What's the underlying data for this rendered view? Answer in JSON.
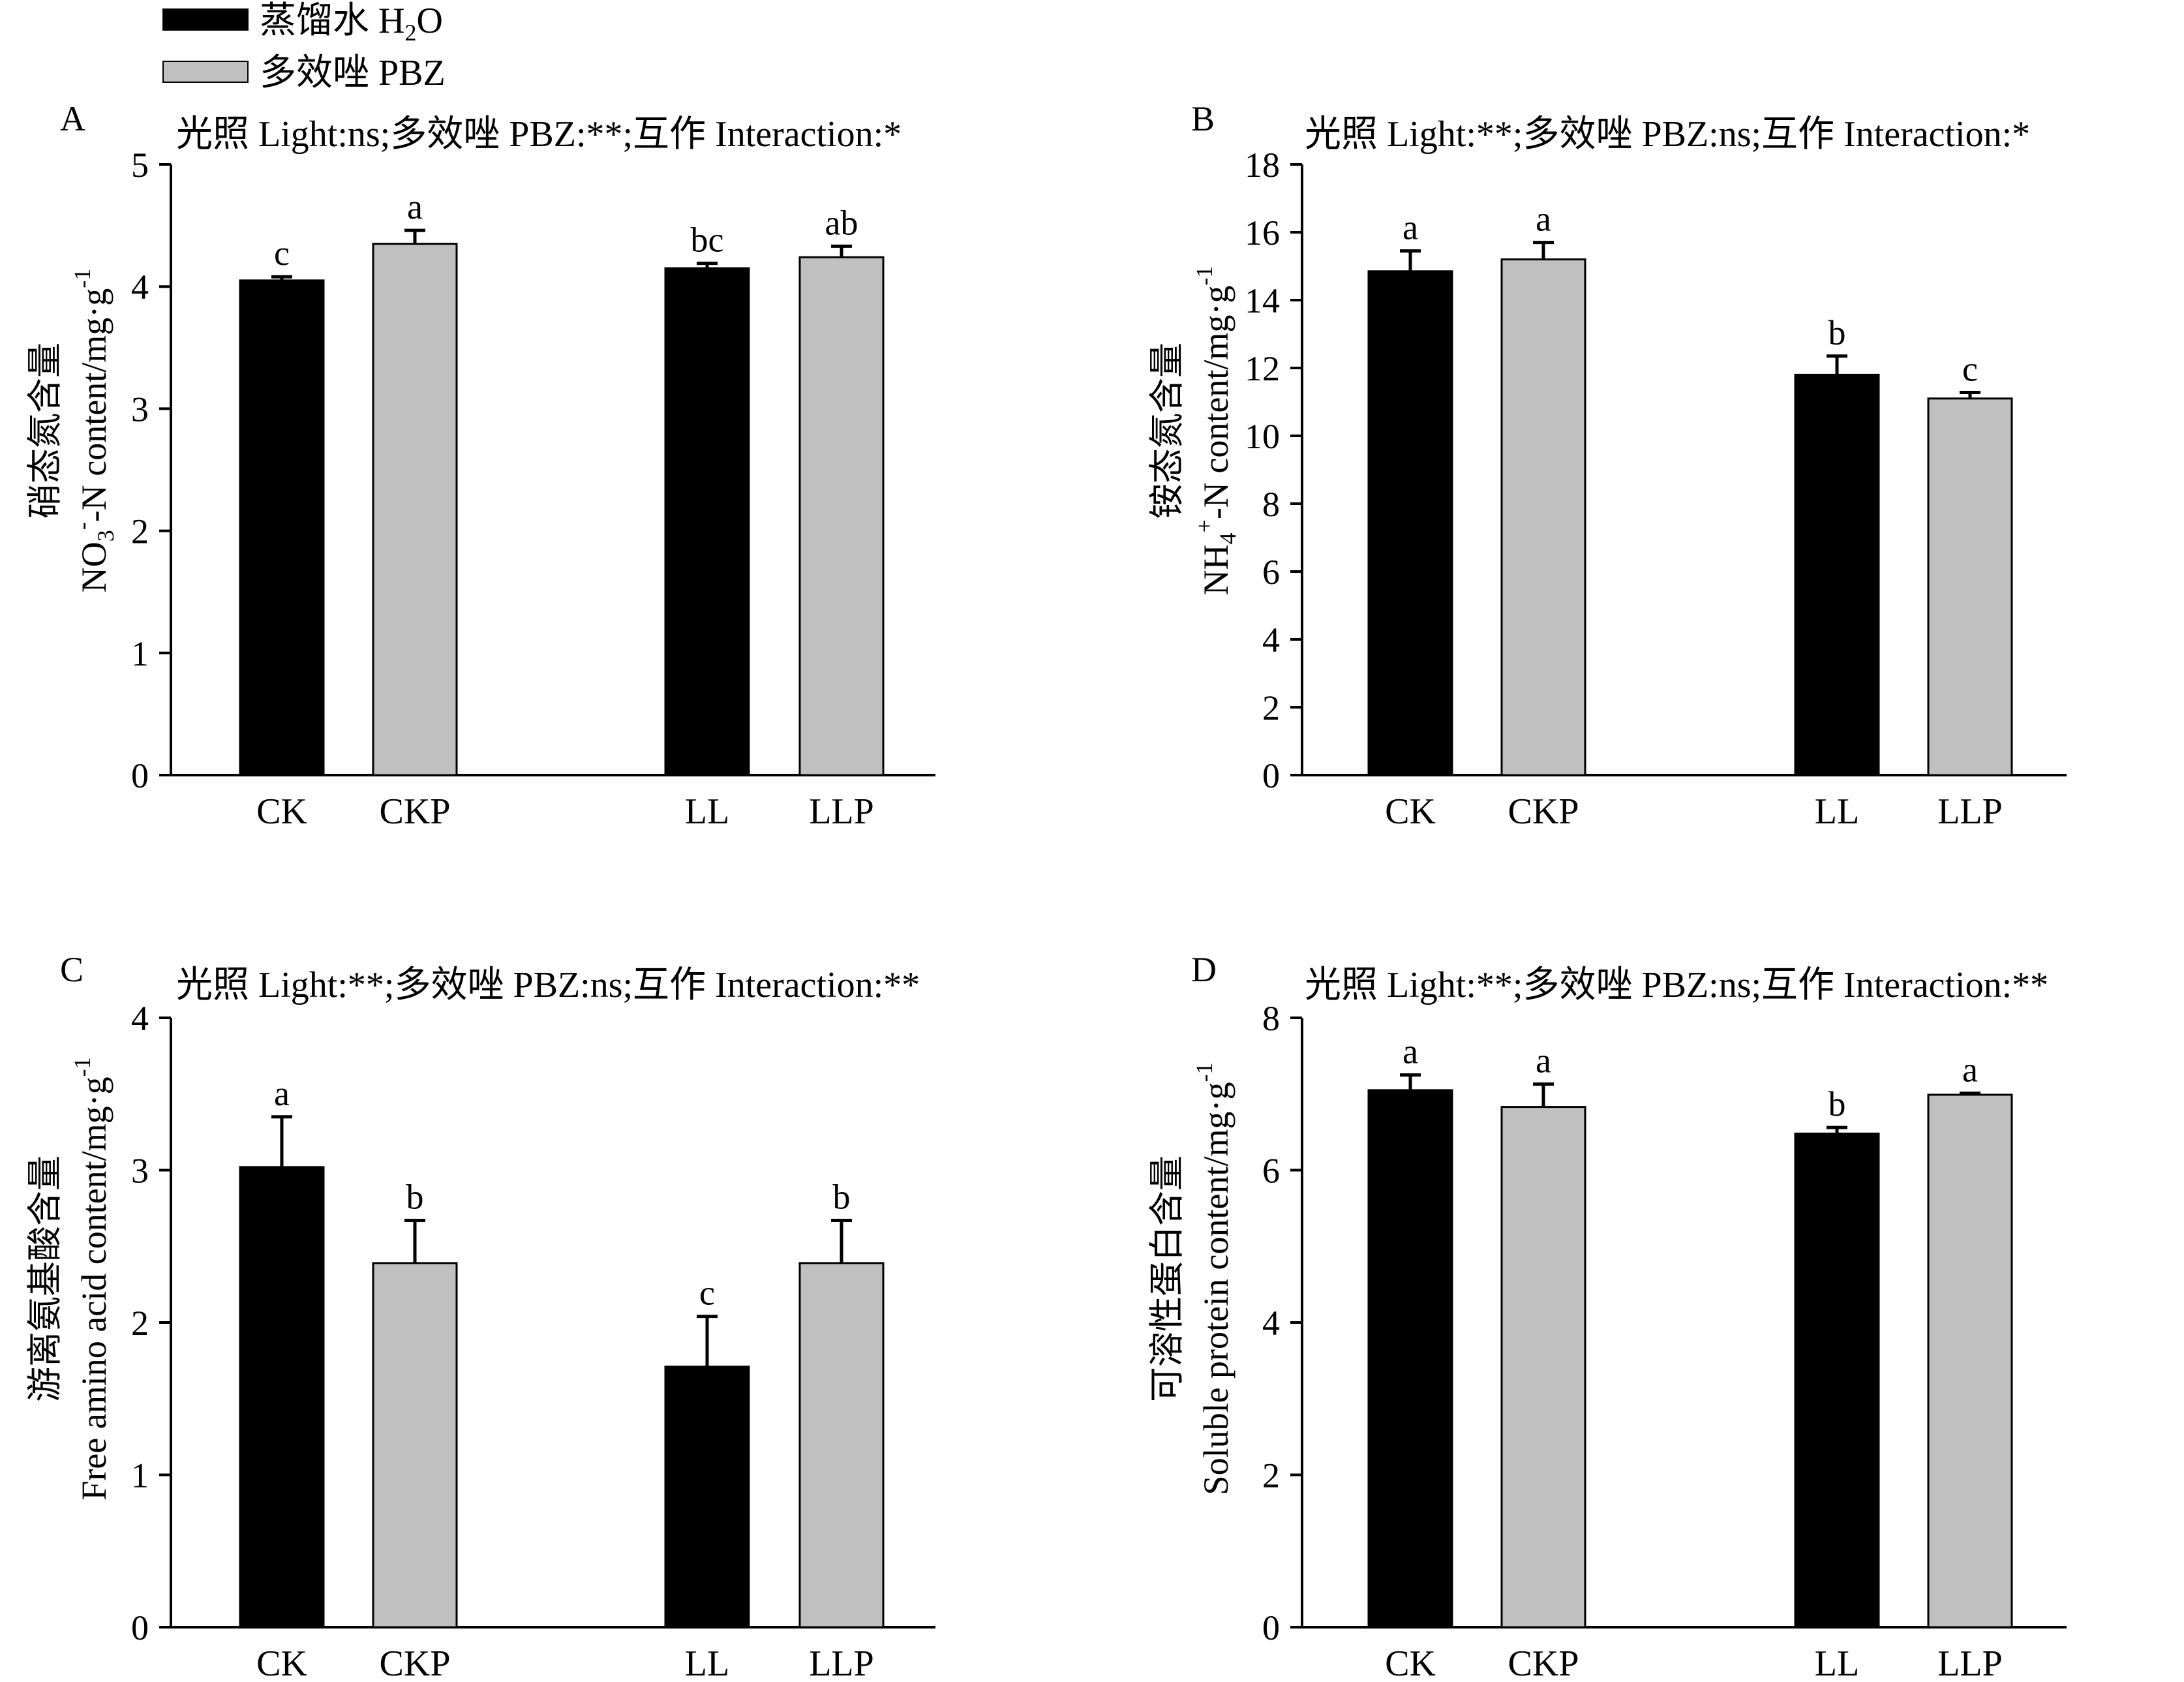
{
  "legend": {
    "items": [
      {
        "key": "h2o",
        "zh": "蒸馏水",
        "en": "H",
        "sub": "2",
        "en2": "O",
        "color": "#000000"
      },
      {
        "key": "pbz",
        "zh": "多效唑",
        "en": "PBZ",
        "color": "#c0c0c0"
      }
    ]
  },
  "chart_data": [
    {
      "type": "bar",
      "panel": "A",
      "stats": "光照 Light:ns;多效唑 PBZ:**;互作 Interaction:*",
      "ylabel_zh": "硝态氮含量",
      "ylabel_en": [
        "NO",
        "3",
        "-",
        "-N content/mg·g",
        "-1"
      ],
      "ylim": [
        0,
        5
      ],
      "yticks": [
        0,
        1,
        2,
        3,
        4,
        5
      ],
      "categories": [
        "CK",
        "CKP",
        "LL",
        "LLP"
      ],
      "series_of_category": [
        "h2o",
        "pbz",
        "h2o",
        "pbz"
      ],
      "values": [
        4.05,
        4.35,
        4.15,
        4.24
      ],
      "errors": [
        0.03,
        0.11,
        0.04,
        0.09
      ],
      "sig_letters": [
        "c",
        "a",
        "bc",
        "ab"
      ]
    },
    {
      "type": "bar",
      "panel": "B",
      "stats": "光照 Light:**;多效唑 PBZ:ns;互作 Interaction:*",
      "ylabel_zh": "铵态氮含量",
      "ylabel_en": [
        "NH",
        "4",
        "+",
        "-N content/mg·g",
        "-1"
      ],
      "ylim": [
        0,
        18
      ],
      "yticks": [
        0,
        2,
        4,
        6,
        8,
        10,
        12,
        14,
        16,
        18
      ],
      "categories": [
        "CK",
        "CKP",
        "LL",
        "LLP"
      ],
      "series_of_category": [
        "h2o",
        "pbz",
        "h2o",
        "pbz"
      ],
      "values": [
        14.85,
        15.2,
        11.8,
        11.1
      ],
      "errors": [
        0.6,
        0.5,
        0.55,
        0.18
      ],
      "sig_letters": [
        "a",
        "a",
        "b",
        "c"
      ]
    },
    {
      "type": "bar",
      "panel": "C",
      "stats": "光照 Light:**;多效唑 PBZ:ns;互作 Interaction:**",
      "ylabel_zh": "游离氨基酸含量",
      "ylabel_en": [
        "Free amino acid content/mg·g",
        "-1"
      ],
      "ylim": [
        0,
        4
      ],
      "yticks": [
        0,
        1,
        2,
        3,
        4
      ],
      "categories": [
        "CK",
        "CKP",
        "LL",
        "LLP"
      ],
      "series_of_category": [
        "h2o",
        "pbz",
        "h2o",
        "pbz"
      ],
      "values": [
        3.02,
        2.39,
        1.71,
        2.39
      ],
      "errors": [
        0.33,
        0.28,
        0.33,
        0.28
      ],
      "sig_letters": [
        "a",
        "b",
        "c",
        "b"
      ]
    },
    {
      "type": "bar",
      "panel": "D",
      "stats": "光照 Light:**;多效唑 PBZ:ns;互作 Interaction:**",
      "ylabel_zh": "可溶性蛋白含量",
      "ylabel_en": [
        "Soluble protein content/mg·g",
        "-1"
      ],
      "ylim": [
        0,
        8
      ],
      "yticks": [
        0,
        2,
        4,
        6,
        8
      ],
      "categories": [
        "CK",
        "CKP",
        "LL",
        "LLP"
      ],
      "series_of_category": [
        "h2o",
        "pbz",
        "h2o",
        "pbz"
      ],
      "values": [
        7.05,
        6.83,
        6.48,
        6.99
      ],
      "errors": [
        0.2,
        0.3,
        0.08,
        0.02
      ],
      "sig_letters": [
        "a",
        "a",
        "b",
        "a"
      ]
    }
  ]
}
